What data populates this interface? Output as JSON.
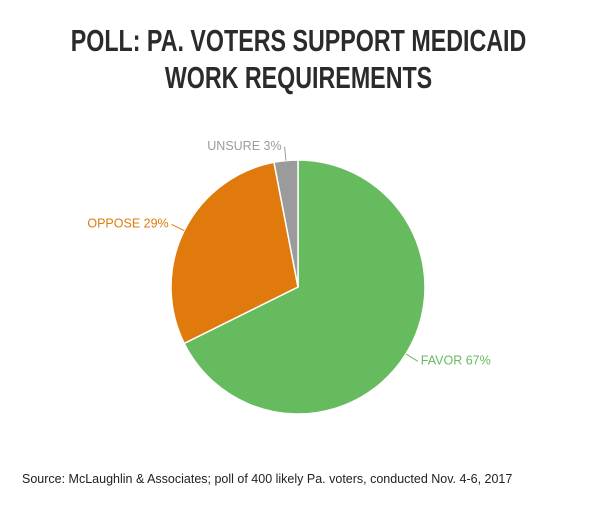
{
  "chart_data": {
    "type": "pie",
    "title": "POLL: PA. VOTERS SUPPORT MEDICAID WORK REQUIREMENTS",
    "values": [
      67,
      29,
      3
    ],
    "value_labels": [
      "FAVOR 67%",
      "OPPOSE 29%",
      "UNSURE 3%"
    ],
    "colors": [
      "#65bb5e",
      "#e07a0d",
      "#9b9b9b"
    ],
    "source": "Source: McLaughlin & Associates; poll of 400 likely Pa. voters, conducted Nov. 4-6, 2017"
  }
}
